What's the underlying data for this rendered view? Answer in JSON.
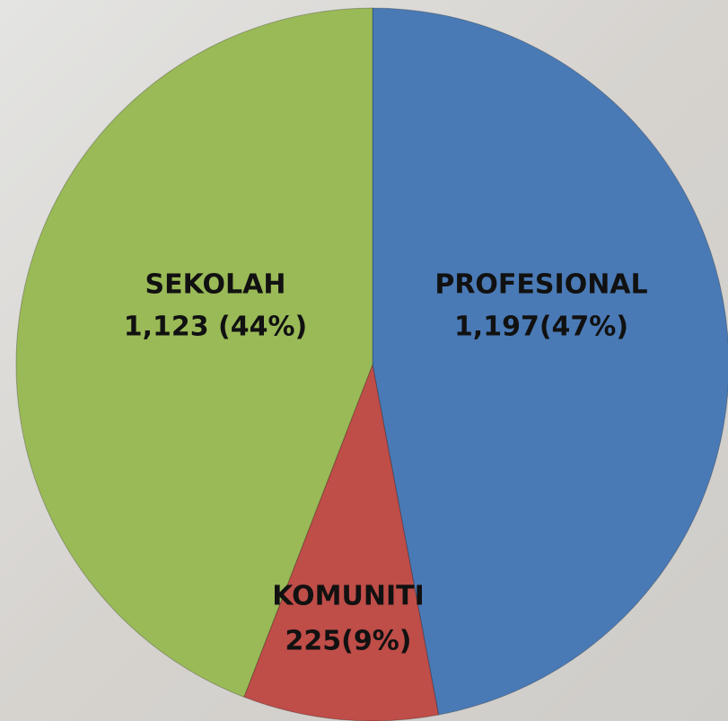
{
  "chart_data": {
    "type": "pie",
    "categories": [
      "PROFESIONAL",
      "KOMUNITI",
      "SEKOLAH"
    ],
    "values": [
      1197,
      225,
      1123
    ],
    "value_labels": [
      "1,197(47%)",
      "225(9%)",
      "1,123 (44%)"
    ],
    "colors": [
      "#4a7ab5",
      "#bf4d48",
      "#9aba57"
    ]
  }
}
